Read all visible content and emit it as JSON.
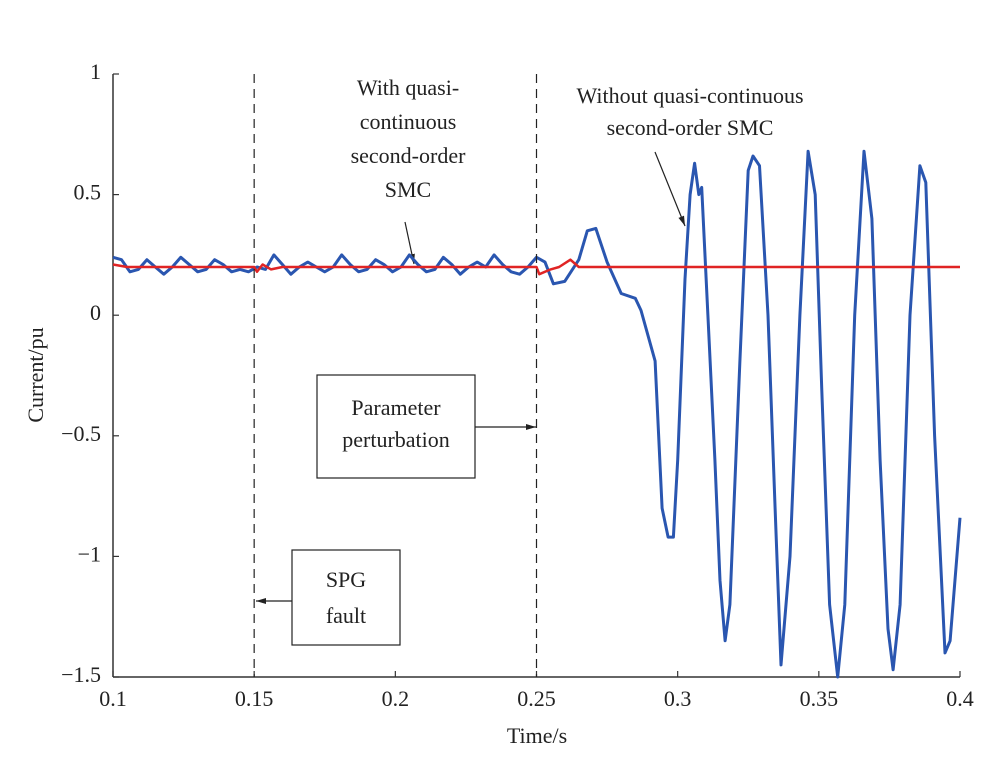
{
  "chart_data": {
    "type": "line",
    "xlabel": "Time/s",
    "ylabel": "Current/pu",
    "xlim": [
      0.1,
      0.4
    ],
    "xticks": [
      0.1,
      0.15,
      0.2,
      0.25,
      0.3,
      0.35,
      0.4
    ],
    "ylim": [
      -1.5,
      1
    ],
    "yticks": [
      {
        "value": -1.5,
        "label": "−1.5"
      },
      {
        "value": -1,
        "label": "−1"
      },
      {
        "value": -0.5,
        "label": "−0.5"
      },
      0,
      0.5,
      1
    ],
    "vlines": [
      0.15,
      0.25
    ],
    "annotations": [
      {
        "lines": [
          "With quasi-",
          "continuous",
          "second-order",
          "SMC"
        ]
      },
      {
        "lines": [
          "Without quasi-continuous",
          "second-order SMC"
        ]
      },
      {
        "lines": [
          "Parameter",
          "perturbation"
        ]
      },
      {
        "lines": [
          "SPG",
          "fault"
        ]
      }
    ],
    "series": [
      {
        "color": "#2a56b0",
        "x": [
          0.1,
          0.103,
          0.106,
          0.109,
          0.112,
          0.115,
          0.118,
          0.121,
          0.124,
          0.127,
          0.13,
          0.133,
          0.136,
          0.139,
          0.142,
          0.145,
          0.148,
          0.151,
          0.154,
          0.157,
          0.16,
          0.163,
          0.166,
          0.169,
          0.172,
          0.175,
          0.178,
          0.181,
          0.184,
          0.187,
          0.19,
          0.193,
          0.196,
          0.199,
          0.202,
          0.205,
          0.208,
          0.211,
          0.214,
          0.217,
          0.22,
          0.223,
          0.226,
          0.229,
          0.232,
          0.235,
          0.238,
          0.241,
          0.244,
          0.247,
          0.25,
          0.253,
          0.256,
          0.26,
          0.265,
          0.268,
          0.271,
          0.275,
          0.28,
          0.285,
          0.287,
          0.292,
          0.2945,
          0.2966,
          0.2985,
          0.3,
          0.3026,
          0.3044,
          0.306,
          0.3075,
          0.3085,
          0.3107,
          0.3132,
          0.315,
          0.3168,
          0.3185,
          0.322,
          0.325,
          0.3267,
          0.329,
          0.332,
          0.3345,
          0.3366,
          0.3398,
          0.3433,
          0.3462,
          0.3487,
          0.351,
          0.3538,
          0.3567,
          0.3592,
          0.3627,
          0.366,
          0.3688,
          0.3717,
          0.3745,
          0.3763,
          0.3788,
          0.3823,
          0.3858,
          0.3879,
          0.391,
          0.3947,
          0.3965,
          0.4
        ],
        "values": [
          0.24,
          0.23,
          0.18,
          0.19,
          0.23,
          0.2,
          0.17,
          0.2,
          0.24,
          0.21,
          0.18,
          0.19,
          0.23,
          0.21,
          0.18,
          0.19,
          0.18,
          0.2,
          0.19,
          0.25,
          0.21,
          0.17,
          0.2,
          0.22,
          0.2,
          0.18,
          0.2,
          0.25,
          0.21,
          0.18,
          0.19,
          0.23,
          0.21,
          0.18,
          0.2,
          0.25,
          0.21,
          0.18,
          0.19,
          0.24,
          0.21,
          0.17,
          0.2,
          0.22,
          0.2,
          0.25,
          0.21,
          0.18,
          0.17,
          0.2,
          0.24,
          0.22,
          0.13,
          0.14,
          0.23,
          0.35,
          0.36,
          0.22,
          0.09,
          0.07,
          0.02,
          -0.19,
          -0.8,
          -0.92,
          -0.92,
          -0.6,
          0.15,
          0.5,
          0.63,
          0.5,
          0.53,
          0.0,
          -0.6,
          -1.1,
          -1.35,
          -1.2,
          -0.2,
          0.6,
          0.66,
          0.62,
          0.0,
          -0.8,
          -1.45,
          -1.0,
          0.0,
          0.68,
          0.5,
          -0.3,
          -1.2,
          -1.5,
          -1.2,
          0.0,
          0.68,
          0.4,
          -0.6,
          -1.3,
          -1.47,
          -1.2,
          0.0,
          0.62,
          0.55,
          -0.5,
          -1.4,
          -1.35,
          -0.84
        ]
      },
      {
        "color": "#e02424",
        "x": [
          0.1,
          0.105,
          0.11,
          0.15,
          0.151,
          0.153,
          0.156,
          0.16,
          0.25,
          0.251,
          0.255,
          0.258,
          0.262,
          0.265,
          0.27,
          0.3,
          0.35,
          0.4
        ],
        "values": [
          0.21,
          0.2,
          0.2,
          0.2,
          0.18,
          0.21,
          0.19,
          0.2,
          0.2,
          0.17,
          0.19,
          0.2,
          0.23,
          0.2,
          0.2,
          0.2,
          0.2,
          0.2
        ]
      }
    ]
  }
}
